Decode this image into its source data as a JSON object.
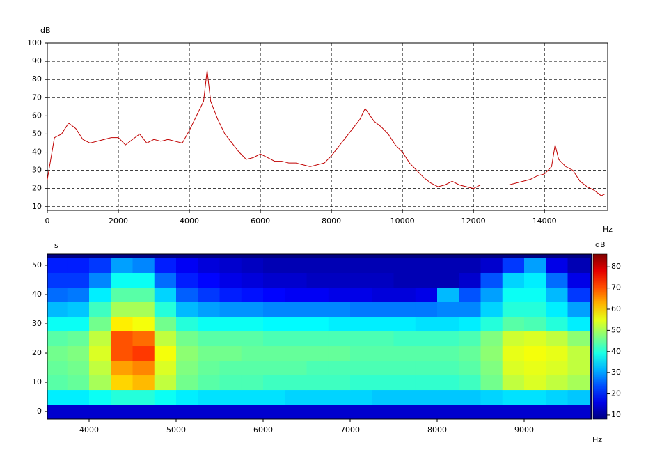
{
  "chart_data": [
    {
      "type": "line",
      "xlabel": "Hz",
      "ylabel": "dB",
      "color": "#c00000",
      "grid": true,
      "xlim": [
        0,
        15780
      ],
      "ylim": [
        8,
        100
      ],
      "xticks": [
        0,
        2000,
        4000,
        6000,
        8000,
        10000,
        12000,
        14000
      ],
      "yticks": [
        10,
        20,
        30,
        40,
        50,
        60,
        70,
        80,
        90,
        100
      ],
      "x": [
        0,
        200,
        400,
        600,
        800,
        1000,
        1200,
        1400,
        1600,
        1800,
        2000,
        2200,
        2400,
        2600,
        2800,
        3000,
        3200,
        3400,
        3600,
        3800,
        4000,
        4200,
        4400,
        4500,
        4600,
        4800,
        5000,
        5200,
        5400,
        5600,
        5800,
        6000,
        6200,
        6400,
        6600,
        6800,
        7000,
        7200,
        7400,
        7600,
        7800,
        8000,
        8200,
        8400,
        8600,
        8800,
        8950,
        9200,
        9400,
        9600,
        9800,
        10000,
        10200,
        10400,
        10600,
        10800,
        11000,
        11200,
        11400,
        11600,
        11800,
        12000,
        12200,
        12400,
        12600,
        12800,
        13000,
        13200,
        13400,
        13600,
        13800,
        14000,
        14200,
        14300,
        14400,
        14600,
        14800,
        15000,
        15200,
        15400,
        15600,
        15700
      ],
      "values": [
        25,
        48,
        50,
        56,
        53,
        47,
        45,
        46,
        47,
        48,
        48,
        44,
        47,
        50,
        45,
        47,
        46,
        47,
        46,
        45,
        52,
        60,
        68,
        85,
        68,
        58,
        50,
        45,
        40,
        36,
        37,
        39,
        37,
        35,
        35,
        34,
        34,
        33,
        32,
        33,
        34,
        38,
        43,
        48,
        53,
        58,
        64,
        57,
        54,
        50,
        44,
        40,
        34,
        30,
        26,
        23,
        21,
        22,
        24,
        22,
        21,
        20,
        22,
        22,
        22,
        22,
        22,
        23,
        24,
        25,
        27,
        28,
        32,
        44,
        36,
        32,
        30,
        24,
        21,
        19,
        16,
        17
      ]
    },
    {
      "type": "heatmap",
      "xlabel": "Hz",
      "ylabel": "s",
      "colorbar_label": "dB",
      "xlim": [
        3520,
        9776
      ],
      "ylim": [
        -2.6,
        53.8
      ],
      "zlim": [
        8,
        86
      ],
      "xticks": [
        4000,
        5000,
        6000,
        7000,
        8000,
        9000
      ],
      "yticks": [
        0,
        10,
        20,
        30,
        40,
        50
      ],
      "zticks": [
        10,
        20,
        30,
        40,
        50,
        60,
        70,
        80
      ],
      "x": [
        3625,
        3875,
        4125,
        4375,
        4625,
        4875,
        5125,
        5375,
        5625,
        5875,
        6125,
        6375,
        6625,
        6875,
        7125,
        7375,
        7625,
        7875,
        8125,
        8375,
        8625,
        8875,
        9125,
        9375,
        9625
      ],
      "y": [
        0,
        5,
        10,
        15,
        20,
        25,
        30,
        35,
        40,
        45,
        50
      ],
      "z": [
        [
          14,
          14,
          14,
          14,
          14,
          14,
          14,
          14,
          14,
          14,
          14,
          14,
          14,
          14,
          14,
          14,
          14,
          14,
          14,
          14,
          14,
          14,
          14,
          14,
          14
        ],
        [
          36,
          36,
          38,
          40,
          40,
          38,
          36,
          35,
          35,
          35,
          35,
          34,
          34,
          34,
          34,
          33,
          33,
          33,
          33,
          33,
          34,
          35,
          35,
          34,
          33
        ],
        [
          44,
          45,
          50,
          60,
          62,
          52,
          46,
          44,
          43,
          43,
          42,
          42,
          42,
          42,
          41,
          41,
          41,
          41,
          41,
          42,
          46,
          52,
          54,
          52,
          50
        ],
        [
          45,
          46,
          52,
          64,
          66,
          54,
          47,
          45,
          44,
          44,
          44,
          44,
          43,
          43,
          43,
          43,
          43,
          43,
          43,
          44,
          47,
          54,
          55,
          54,
          52
        ],
        [
          46,
          47,
          54,
          70,
          72,
          56,
          48,
          46,
          46,
          45,
          45,
          45,
          45,
          45,
          44,
          44,
          44,
          44,
          44,
          45,
          48,
          55,
          56,
          55,
          52
        ],
        [
          44,
          45,
          52,
          70,
          68,
          52,
          46,
          44,
          44,
          44,
          43,
          43,
          43,
          43,
          43,
          43,
          42,
          42,
          42,
          43,
          47,
          53,
          54,
          52,
          48
        ],
        [
          38,
          38,
          46,
          58,
          56,
          46,
          40,
          38,
          38,
          38,
          37,
          37,
          37,
          36,
          36,
          36,
          36,
          35,
          35,
          36,
          40,
          44,
          43,
          40,
          36
        ],
        [
          32,
          33,
          42,
          50,
          50,
          40,
          32,
          30,
          29,
          29,
          28,
          28,
          28,
          28,
          27,
          27,
          27,
          27,
          28,
          28,
          34,
          40,
          40,
          36,
          30
        ],
        [
          26,
          27,
          36,
          44,
          44,
          34,
          25,
          22,
          20,
          19,
          18,
          17,
          17,
          16,
          16,
          15,
          15,
          16,
          32,
          24,
          30,
          38,
          38,
          32,
          22
        ],
        [
          22,
          22,
          28,
          38,
          38,
          26,
          20,
          18,
          16,
          15,
          14,
          14,
          13,
          13,
          13,
          13,
          12,
          12,
          12,
          14,
          24,
          34,
          36,
          26,
          16
        ],
        [
          20,
          20,
          22,
          30,
          28,
          20,
          17,
          15,
          14,
          13,
          12,
          12,
          12,
          12,
          12,
          12,
          12,
          12,
          12,
          12,
          14,
          22,
          30,
          16,
          12
        ]
      ]
    }
  ]
}
